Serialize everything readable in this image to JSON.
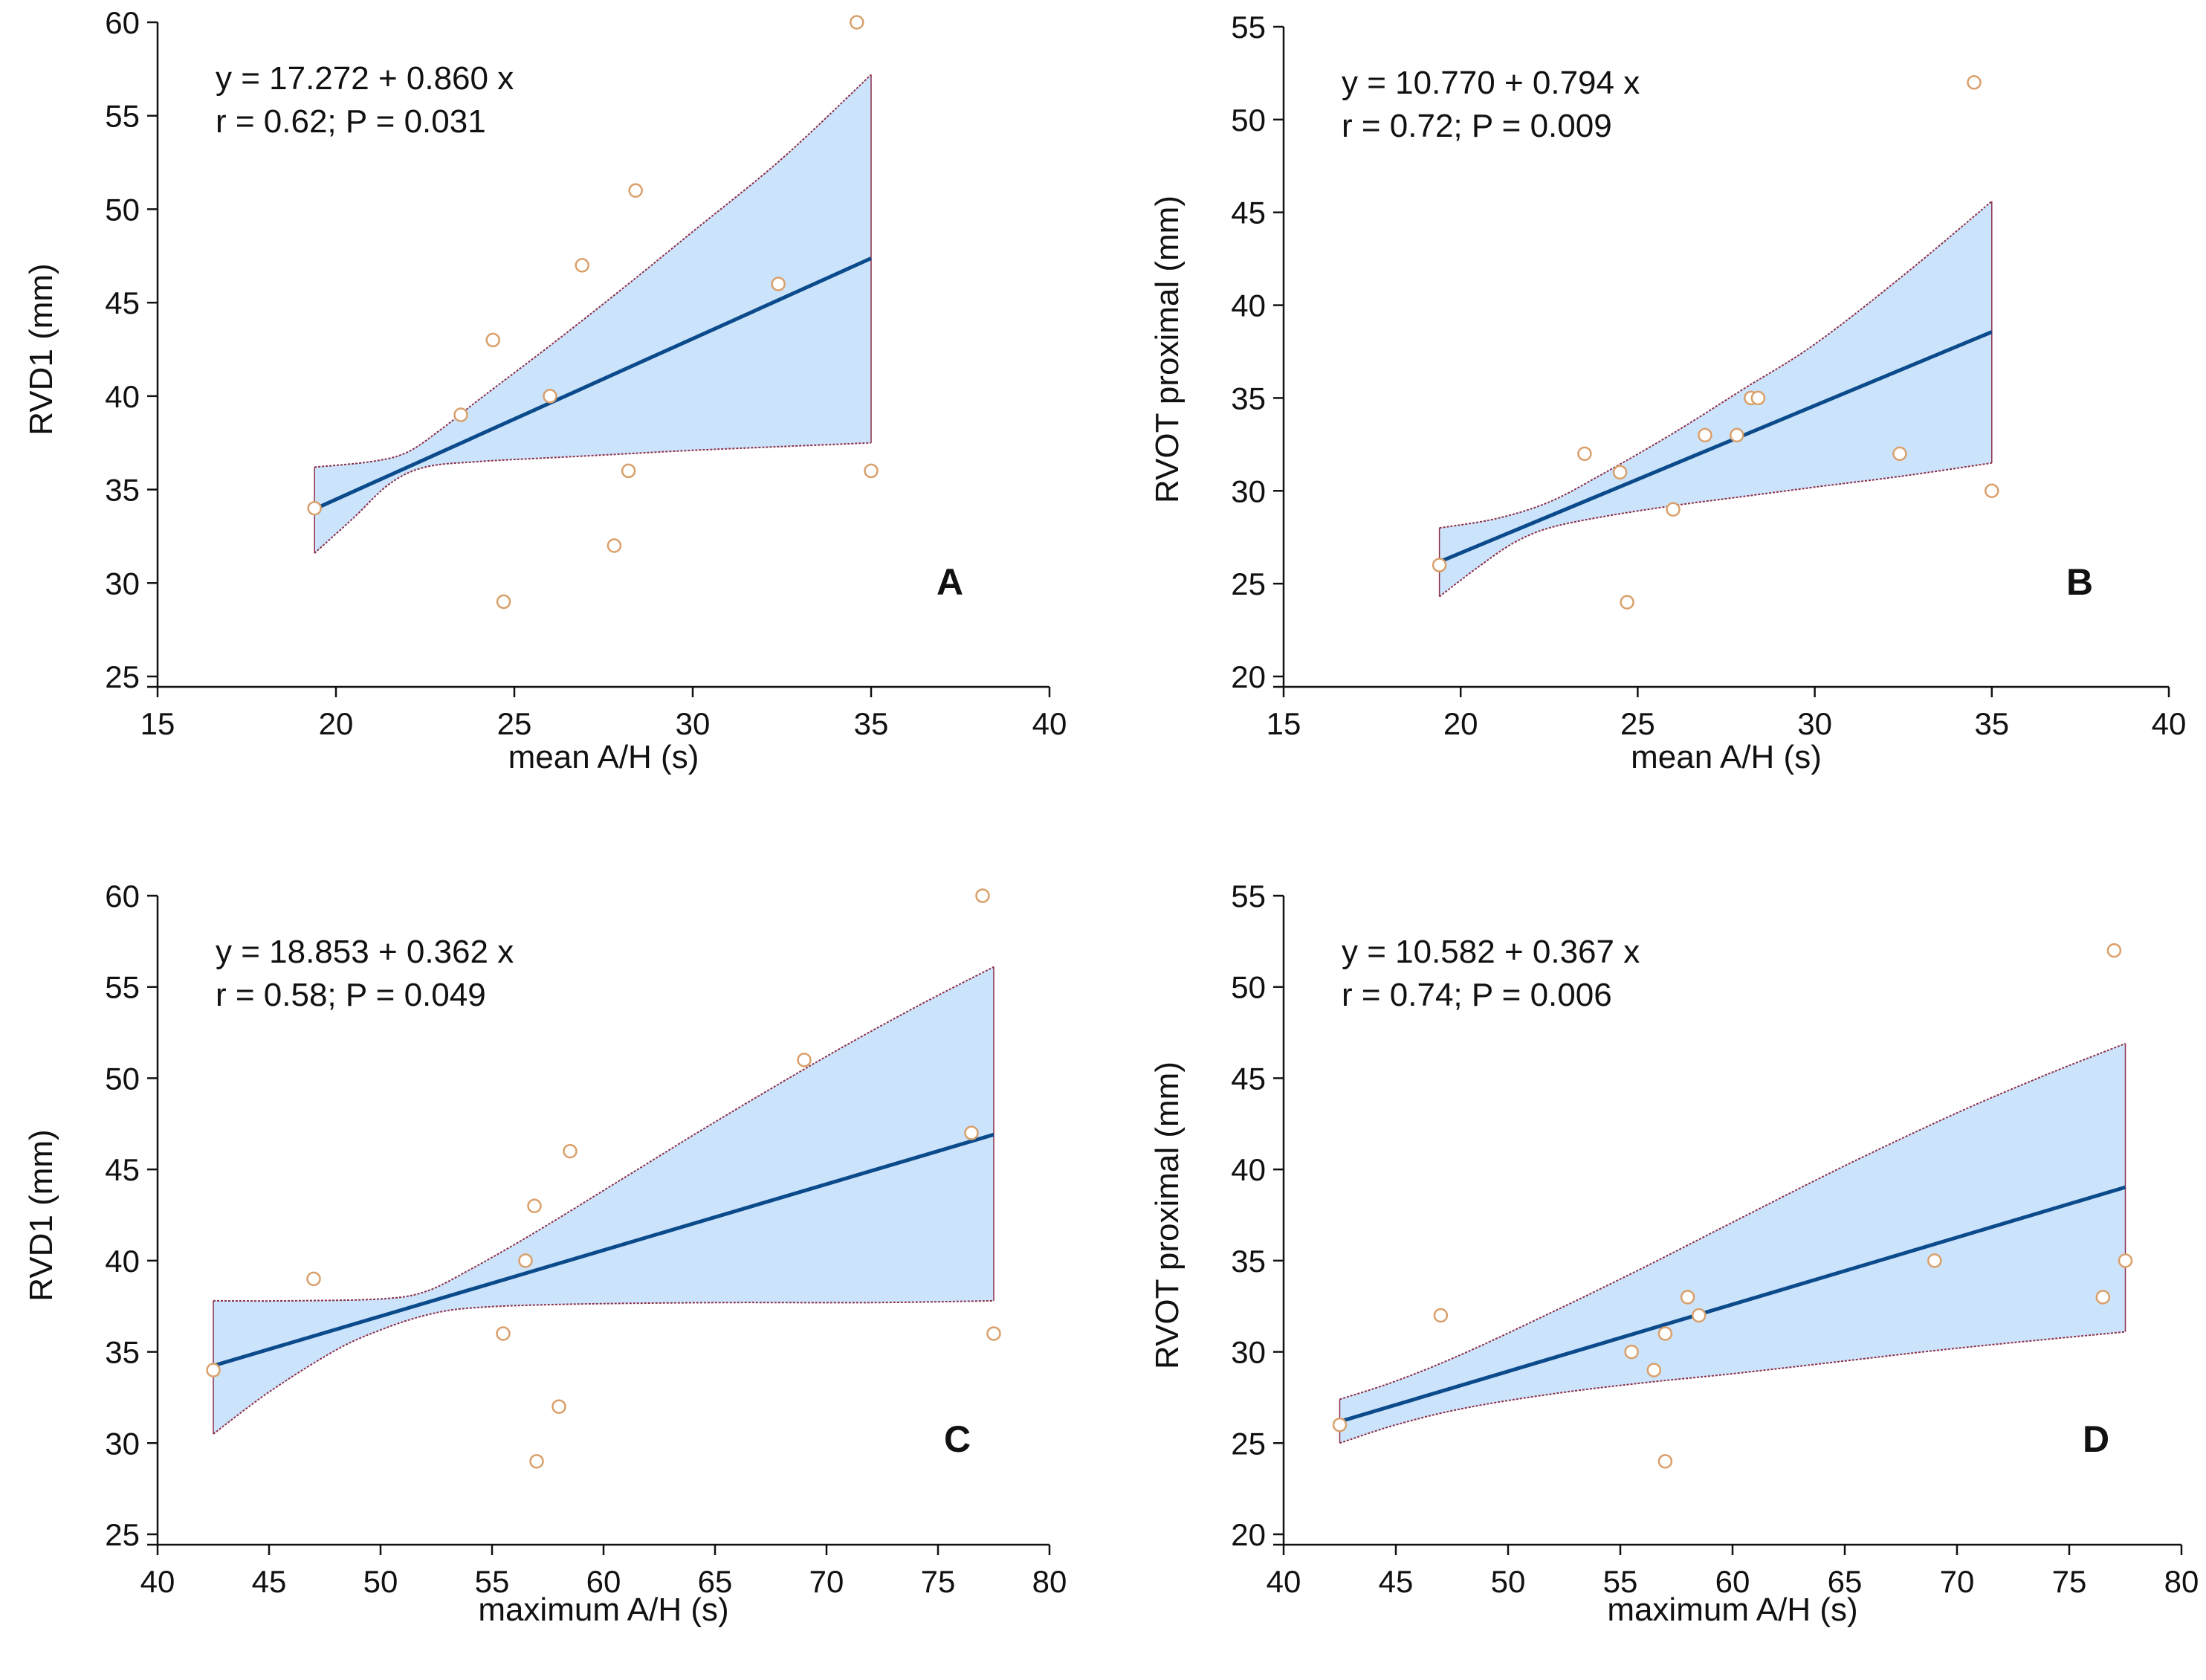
{
  "colors": {
    "band_fill": "#cce4fb",
    "band_edge": "#8b2f4a",
    "fit_line": "#0b4a8b",
    "point_stroke": "#d9a06b",
    "axis": "#111111"
  },
  "chart_data": [
    {
      "type": "scatter",
      "panel": "A",
      "xlabel": "mean A/H (s)",
      "ylabel": "RVD1 (mm)",
      "xlim": [
        15,
        40
      ],
      "ylim": [
        25,
        60
      ],
      "xticks": [
        15,
        20,
        25,
        30,
        35,
        40
      ],
      "yticks": [
        25,
        30,
        35,
        40,
        45,
        50,
        55,
        60
      ],
      "equation": "y = 17.272  +  0.860  x",
      "stats": "r = 0.62; P = 0.031",
      "fit": {
        "intercept": 17.272,
        "slope": 0.86,
        "x_range": [
          19.4,
          35.0
        ]
      },
      "ci_upper": [
        [
          19.4,
          36.2
        ],
        [
          21.0,
          36.5
        ],
        [
          22.0,
          37.0
        ],
        [
          23.0,
          38.3
        ],
        [
          24.0,
          39.8
        ],
        [
          26.0,
          42.7
        ],
        [
          28.0,
          45.7
        ],
        [
          30.0,
          48.8
        ],
        [
          32.5,
          52.7
        ],
        [
          35.0,
          57.2
        ]
      ],
      "ci_lower": [
        [
          19.4,
          31.6
        ],
        [
          20.5,
          33.5
        ],
        [
          21.5,
          35.3
        ],
        [
          22.5,
          36.2
        ],
        [
          24.0,
          36.5
        ],
        [
          26.0,
          36.7
        ],
        [
          28.0,
          36.9
        ],
        [
          30.0,
          37.1
        ],
        [
          32.5,
          37.3
        ],
        [
          35.0,
          37.5
        ]
      ],
      "points": [
        [
          19.4,
          34
        ],
        [
          23.5,
          39
        ],
        [
          24.4,
          43
        ],
        [
          24.7,
          29
        ],
        [
          26.0,
          40
        ],
        [
          26.9,
          47
        ],
        [
          27.8,
          32
        ],
        [
          28.2,
          36
        ],
        [
          28.4,
          51
        ],
        [
          32.4,
          46
        ],
        [
          34.6,
          60
        ],
        [
          35.0,
          36
        ]
      ]
    },
    {
      "type": "scatter",
      "panel": "B",
      "xlabel": "mean A/H (s)",
      "ylabel": "RVOT proximal (mm)",
      "xlim": [
        15,
        40
      ],
      "ylim": [
        20,
        55
      ],
      "xticks": [
        15,
        20,
        25,
        30,
        35,
        40
      ],
      "yticks": [
        20,
        25,
        30,
        35,
        40,
        45,
        50,
        55
      ],
      "equation": "y = 10.770  +  0.794  x",
      "stats": "r = 0.72; P = 0.009",
      "fit": {
        "intercept": 10.77,
        "slope": 0.794,
        "x_range": [
          19.4,
          35.0
        ]
      },
      "ci_upper": [
        [
          19.4,
          28.0
        ],
        [
          21.0,
          28.5
        ],
        [
          22.5,
          29.4
        ],
        [
          24.0,
          30.9
        ],
        [
          26.0,
          33.1
        ],
        [
          28.0,
          35.5
        ],
        [
          30.0,
          37.9
        ],
        [
          32.5,
          41.6
        ],
        [
          35.0,
          45.6
        ]
      ],
      "ci_lower": [
        [
          19.4,
          24.3
        ],
        [
          20.5,
          25.9
        ],
        [
          21.5,
          27.2
        ],
        [
          22.5,
          28.0
        ],
        [
          24.0,
          28.6
        ],
        [
          26.0,
          29.2
        ],
        [
          28.0,
          29.7
        ],
        [
          30.0,
          30.2
        ],
        [
          32.5,
          30.8
        ],
        [
          35.0,
          31.5
        ]
      ],
      "points": [
        [
          19.4,
          26
        ],
        [
          23.5,
          32
        ],
        [
          24.5,
          31
        ],
        [
          24.7,
          24
        ],
        [
          26.0,
          29
        ],
        [
          26.9,
          33
        ],
        [
          27.8,
          33
        ],
        [
          28.2,
          35
        ],
        [
          28.4,
          35
        ],
        [
          32.4,
          32
        ],
        [
          34.5,
          52
        ],
        [
          35.0,
          30
        ]
      ]
    },
    {
      "type": "scatter",
      "panel": "C",
      "xlabel": "maximum A/H (s)",
      "ylabel": "RVD1 (mm)",
      "xlim": [
        40,
        80
      ],
      "ylim": [
        25,
        60
      ],
      "xticks": [
        40,
        45,
        50,
        55,
        60,
        65,
        70,
        75,
        80
      ],
      "yticks": [
        25,
        30,
        35,
        40,
        45,
        50,
        55,
        60
      ],
      "equation": "y = 18.853  +  0.362  x",
      "stats": "r = 0.58; P = 0.049",
      "fit": {
        "intercept": 18.853,
        "slope": 0.362,
        "x_range": [
          42.5,
          77.5
        ]
      },
      "ci_upper": [
        [
          42.5,
          37.8
        ],
        [
          46.0,
          37.8
        ],
        [
          50.0,
          37.9
        ],
        [
          52.0,
          38.3
        ],
        [
          54.0,
          39.5
        ],
        [
          57.0,
          41.6
        ],
        [
          61.0,
          44.6
        ],
        [
          65.0,
          47.6
        ],
        [
          70.0,
          51.2
        ],
        [
          74.0,
          53.9
        ],
        [
          77.5,
          56.1
        ]
      ],
      "ci_lower": [
        [
          42.5,
          30.5
        ],
        [
          45.0,
          32.8
        ],
        [
          48.0,
          35.1
        ],
        [
          50.0,
          36.2
        ],
        [
          52.0,
          37.0
        ],
        [
          54.0,
          37.4
        ],
        [
          58.0,
          37.6
        ],
        [
          65.0,
          37.7
        ],
        [
          72.0,
          37.7
        ],
        [
          77.5,
          37.8
        ]
      ],
      "points": [
        [
          42.5,
          34
        ],
        [
          47.0,
          39
        ],
        [
          55.5,
          36
        ],
        [
          56.5,
          40
        ],
        [
          56.9,
          43
        ],
        [
          57.0,
          29
        ],
        [
          58.0,
          32
        ],
        [
          58.5,
          46
        ],
        [
          69.0,
          51
        ],
        [
          76.5,
          47
        ],
        [
          77.0,
          60
        ],
        [
          77.5,
          36
        ]
      ]
    },
    {
      "type": "scatter",
      "panel": "D",
      "xlabel": "maximum A/H (s)",
      "ylabel": "RVOT proximal (mm)",
      "xlim": [
        40,
        80
      ],
      "ylim": [
        20,
        55
      ],
      "xticks": [
        40,
        45,
        50,
        55,
        60,
        65,
        70,
        75,
        80
      ],
      "yticks": [
        20,
        25,
        30,
        35,
        40,
        45,
        50,
        55
      ],
      "equation": "y = 10.582  +  0.367  x",
      "stats": "r = 0.74; P = 0.006",
      "fit": {
        "intercept": 10.582,
        "slope": 0.367,
        "x_range": [
          42.5,
          77.5
        ]
      },
      "ci_upper": [
        [
          42.5,
          27.4
        ],
        [
          45.0,
          28.4
        ],
        [
          48.0,
          29.9
        ],
        [
          52.0,
          32.2
        ],
        [
          56.0,
          34.6
        ],
        [
          60.0,
          37.1
        ],
        [
          65.0,
          40.2
        ],
        [
          70.0,
          43.1
        ],
        [
          74.0,
          45.2
        ],
        [
          77.5,
          46.9
        ]
      ],
      "ci_lower": [
        [
          42.5,
          25.0
        ],
        [
          45.0,
          26.0
        ],
        [
          48.0,
          26.9
        ],
        [
          52.0,
          27.7
        ],
        [
          56.0,
          28.3
        ],
        [
          60.0,
          28.8
        ],
        [
          65.0,
          29.5
        ],
        [
          70.0,
          30.2
        ],
        [
          77.5,
          31.1
        ]
      ],
      "points": [
        [
          42.5,
          26
        ],
        [
          47.0,
          32
        ],
        [
          55.5,
          30
        ],
        [
          56.5,
          29
        ],
        [
          57.0,
          31
        ],
        [
          57.0,
          24
        ],
        [
          58.0,
          33
        ],
        [
          58.5,
          32
        ],
        [
          69.0,
          35
        ],
        [
          76.5,
          33
        ],
        [
          77.0,
          52
        ],
        [
          77.5,
          35
        ]
      ]
    }
  ]
}
